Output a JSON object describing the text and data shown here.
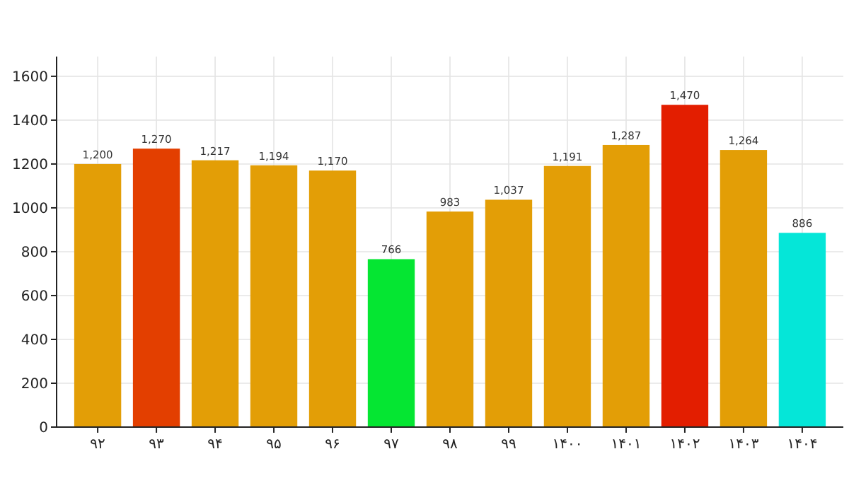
{
  "chart_data": {
    "type": "bar",
    "categories": [
      "۹۲",
      "۹۳",
      "۹۴",
      "۹۵",
      "۹۶",
      "۹۷",
      "۹۸",
      "۹۹",
      "۱۴۰۰",
      "۱۴۰۱",
      "۱۴۰۲",
      "۱۴۰۳",
      "۱۴۰۴"
    ],
    "values": [
      1200,
      1270,
      1217,
      1194,
      1170,
      766,
      983,
      1037,
      1191,
      1287,
      1470,
      1264,
      886
    ],
    "colors": [
      "#e39e06",
      "#e33f00",
      "#e39e06",
      "#e39e06",
      "#e39e06",
      "#05e632",
      "#e39e06",
      "#e39e06",
      "#e39e06",
      "#e39e06",
      "#e31e00",
      "#e39e06",
      "#05e6d8"
    ],
    "value_labels": [
      "1,200",
      "1,270",
      "1,217",
      "1,194",
      "1,170",
      "766",
      "983",
      "1,037",
      "1,191",
      "1,287",
      "1,470",
      "1,264",
      "886"
    ],
    "ylim": [
      0,
      1690
    ],
    "yticks": [
      0,
      200,
      400,
      600,
      800,
      1000,
      1200,
      1400,
      1600
    ],
    "grid": true
  }
}
